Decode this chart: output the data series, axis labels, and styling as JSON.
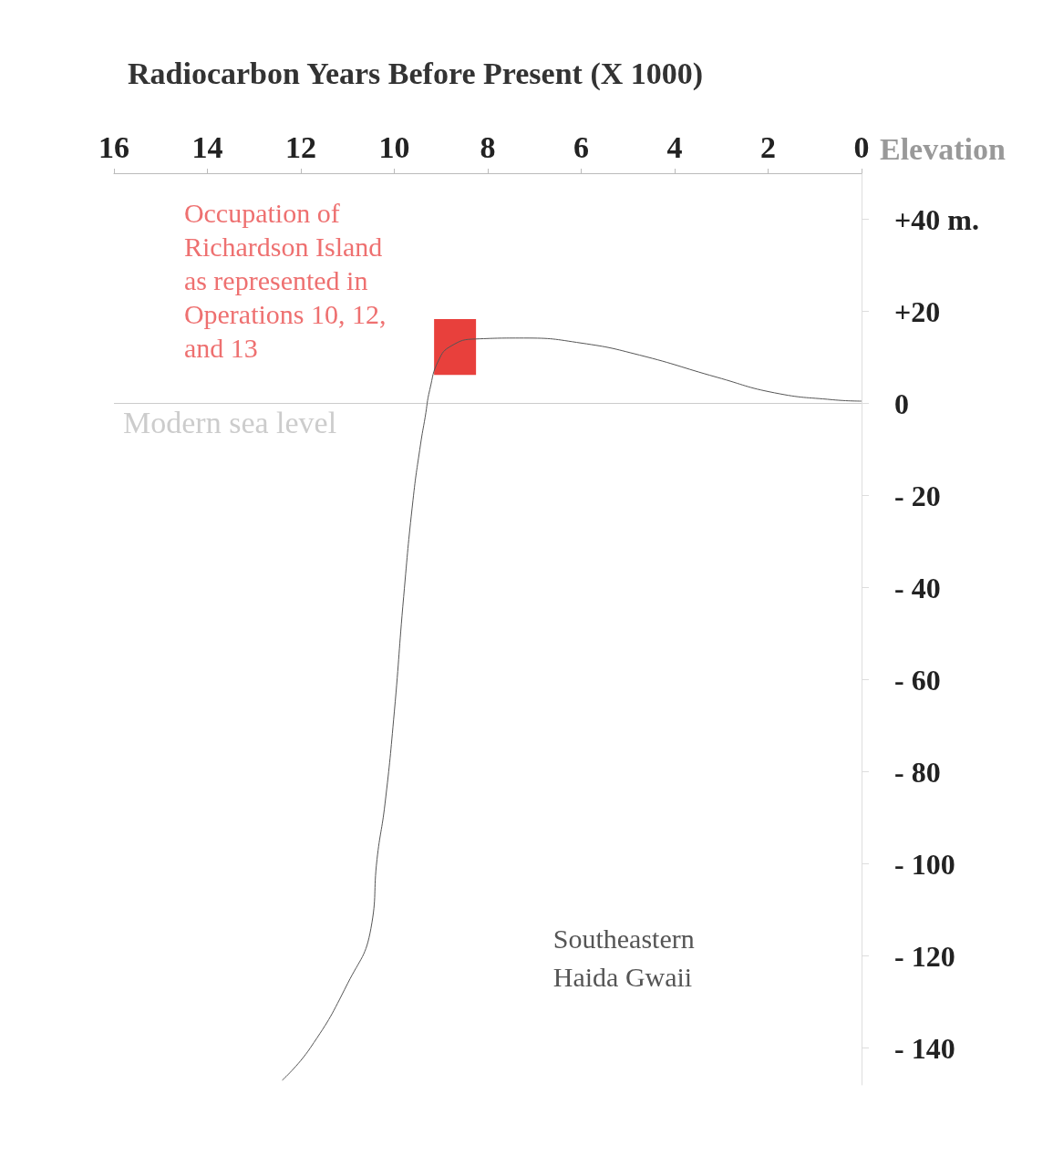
{
  "chart_data": {
    "type": "line",
    "xlabel": "Radiocarbon Years Before Present (X 1000)",
    "ylabel": "Elevation",
    "xlim": [
      16,
      0
    ],
    "xticks": [
      16,
      14,
      12,
      10,
      8,
      6,
      4,
      2,
      0
    ],
    "ylim": [
      -148,
      50
    ],
    "yticks": [
      {
        "value": 40,
        "label": "+40 m."
      },
      {
        "value": 20,
        "label": "+20"
      },
      0,
      {
        "value": -20,
        "label": "- 20"
      },
      {
        "value": -40,
        "label": "- 40"
      },
      {
        "value": -60,
        "label": "- 60"
      },
      {
        "value": -80,
        "label": "- 80"
      },
      {
        "value": -100,
        "label": "- 100"
      },
      {
        "value": -120,
        "label": "- 120"
      },
      {
        "value": -140,
        "label": "- 140"
      }
    ],
    "grid": false,
    "marker": "none",
    "line_style": "solid",
    "ref_lines": [
      {
        "axis": "y",
        "value": 0,
        "label": "Modern sea level",
        "color": "#cccccc"
      }
    ],
    "series": [
      {
        "name": "Southeastern\nHaida Gwaii",
        "color": "#555555",
        "x": [
          12.4,
          11.8,
          11.0,
          10.5,
          10.37,
          10.2,
          10.0,
          9.8,
          9.6,
          9.44,
          9.34,
          9.24,
          9.05,
          8.78,
          8.26,
          7.23,
          5.99,
          4.75,
          3.1,
          1.86,
          0.62,
          0
        ],
        "values": [
          -147,
          -140,
          -126,
          -114,
          -99,
          -87,
          -67,
          -42,
          -21,
          -9,
          -3,
          3,
          9.4,
          12.5,
          14,
          14.2,
          13.1,
          10.5,
          5.7,
          2.3,
          0.8,
          0.5
        ]
      },
      {
        "type": "bar",
        "name": "Occupation of\nRichardson Island\nas represented in\nOperations 10, 12,\nand 13",
        "color": "#e8403c",
        "x": [
          8.7
        ],
        "base": [
          6.2
        ],
        "values": [
          12.1
        ]
      }
    ]
  }
}
